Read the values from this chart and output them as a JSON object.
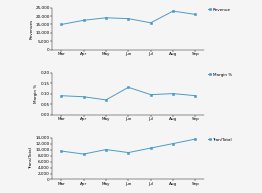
{
  "months": [
    "Mar",
    "Apr",
    "May",
    "Jun",
    "Jul",
    "Aug",
    "Sep"
  ],
  "revenue": [
    15000,
    17500,
    19000,
    18500,
    16000,
    23000,
    21000
  ],
  "margin_pct": [
    0.09,
    0.085,
    0.07,
    0.13,
    0.095,
    0.1,
    0.09
  ],
  "transaction": [
    9500,
    8500,
    10000,
    9000,
    10500,
    12000,
    13500
  ],
  "line_color": "#4a9cc7",
  "marker_color": "#4a9cc7",
  "bg_color": "#f5f5f5",
  "ylabel1": "Revenues",
  "ylabel2": "Margin %",
  "ylabel3": "Trans/Total",
  "legend1": "Revenue",
  "legend2": "Margin %",
  "legend3": "Tran/Total",
  "ylim1": [
    0,
    25000
  ],
  "ylim2": [
    0.0,
    0.2
  ],
  "ylim3": [
    0,
    14000
  ],
  "yticks1": [
    0,
    5000,
    10000,
    15000,
    20000,
    25000
  ],
  "yticks2": [
    0.0,
    0.05,
    0.1,
    0.15,
    0.2
  ],
  "yticks3": [
    0,
    2000,
    4000,
    6000,
    8000,
    10000,
    12000,
    14000
  ],
  "ytick_labels1": [
    "0",
    "5,000",
    "10,000",
    "15,000",
    "20,000",
    "25,000"
  ],
  "ytick_labels2": [
    "0.00",
    "0.05",
    "0.10",
    "0.15",
    "0.20"
  ],
  "ytick_labels3": [
    "0",
    "2,000",
    "4,000",
    "6,000",
    "8,000",
    "10,000",
    "12,000",
    "14,000"
  ]
}
